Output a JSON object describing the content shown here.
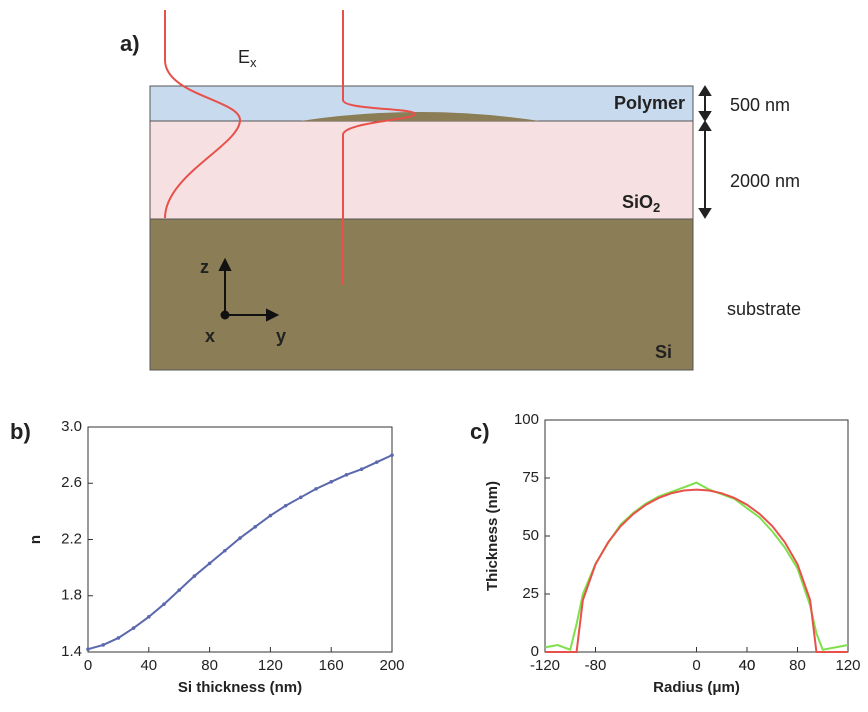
{
  "diagram": {
    "panel_label": "a)",
    "field_label": "E",
    "field_subscript": "x",
    "polymer_label": "Polymer",
    "sio2_label": "SiO",
    "sio2_subscript": "2",
    "si_label": "Si",
    "polymer_thickness": "500 nm",
    "sio2_thickness": "2000 nm",
    "substrate_label": "substrate",
    "axis_z": "z",
    "axis_y": "y",
    "axis_x": "x"
  },
  "chart_data": [
    {
      "type": "line",
      "panel_label": "b)",
      "x_label": "Si thickness (nm)",
      "y_label": "n",
      "x": [
        0,
        10,
        20,
        30,
        40,
        50,
        60,
        70,
        80,
        90,
        100,
        110,
        120,
        130,
        140,
        150,
        160,
        170,
        180,
        190,
        200
      ],
      "series": [
        {
          "color": "#5b68ad",
          "values": [
            1.42,
            1.45,
            1.5,
            1.57,
            1.65,
            1.74,
            1.84,
            1.94,
            2.03,
            2.12,
            2.21,
            2.29,
            2.37,
            2.44,
            2.5,
            2.56,
            2.61,
            2.66,
            2.7,
            2.75,
            2.8
          ]
        }
      ],
      "markers": true,
      "xlim": [
        0,
        200
      ],
      "ylim": [
        1.4,
        3.0
      ],
      "xticks": [
        0,
        40,
        80,
        120,
        160,
        200
      ],
      "yticks": [
        1.4,
        1.8,
        2.2,
        2.6,
        {
          "value": 3,
          "label": "3.0"
        }
      ]
    },
    {
      "type": "line",
      "panel_label": "c)",
      "x_label": "Radius (μm)",
      "y_label": "Thickness (nm)",
      "x": [
        -120,
        -110,
        -100,
        -95,
        -90,
        -80,
        -70,
        -60,
        -50,
        -40,
        -30,
        -20,
        -10,
        0,
        10,
        20,
        30,
        40,
        50,
        60,
        70,
        80,
        90,
        95,
        100,
        110,
        120
      ],
      "series": [
        {
          "color": "#7ee04a",
          "values": [
            2,
            3,
            1,
            12,
            25,
            38,
            47,
            55,
            60,
            64,
            67,
            69,
            71,
            73,
            70,
            68,
            66,
            62,
            58,
            52,
            45,
            36,
            20,
            8,
            1,
            2,
            3
          ]
        },
        {
          "color": "#e8504a",
          "values": [
            0,
            0,
            0,
            0,
            22.4,
            37.8,
            47.3,
            54.3,
            59.5,
            63.5,
            66.4,
            68.4,
            69.6,
            70,
            69.6,
            68.4,
            66.4,
            63.5,
            59.5,
            54.3,
            47.3,
            37.8,
            22.4,
            0,
            0,
            0,
            0
          ]
        }
      ],
      "markers": false,
      "xlim": [
        -120,
        120
      ],
      "ylim": [
        0,
        100
      ],
      "xticks": [
        -120,
        -80,
        40,
        0,
        40,
        80,
        120
      ],
      "yticks": [
        0,
        25,
        50,
        75,
        100
      ]
    }
  ]
}
